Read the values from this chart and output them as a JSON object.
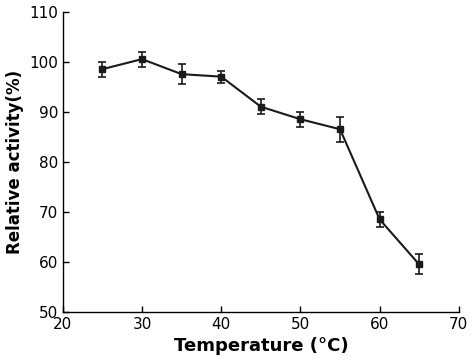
{
  "x": [
    25,
    30,
    35,
    40,
    45,
    50,
    55,
    60,
    65
  ],
  "y": [
    98.5,
    100.5,
    97.5,
    97.0,
    91.0,
    88.5,
    86.5,
    68.5,
    59.5
  ],
  "yerr": [
    1.5,
    1.5,
    2.0,
    1.2,
    1.5,
    1.5,
    2.5,
    1.5,
    2.0
  ],
  "xlabel": "Temperature (°C)",
  "ylabel": "Relative activity(%)",
  "xlim": [
    20,
    70
  ],
  "ylim": [
    50,
    110
  ],
  "xticks": [
    20,
    30,
    40,
    50,
    60,
    70
  ],
  "yticks": [
    50,
    60,
    70,
    80,
    90,
    100,
    110
  ],
  "line_color": "#1a1a1a",
  "marker": "s",
  "marker_size": 5,
  "marker_facecolor": "#1a1a1a",
  "marker_edgecolor": "#1a1a1a",
  "linewidth": 1.5,
  "capsize": 3,
  "elinewidth": 1.2,
  "xlabel_fontsize": 13,
  "ylabel_fontsize": 12,
  "tick_fontsize": 11,
  "background_color": "#ffffff"
}
